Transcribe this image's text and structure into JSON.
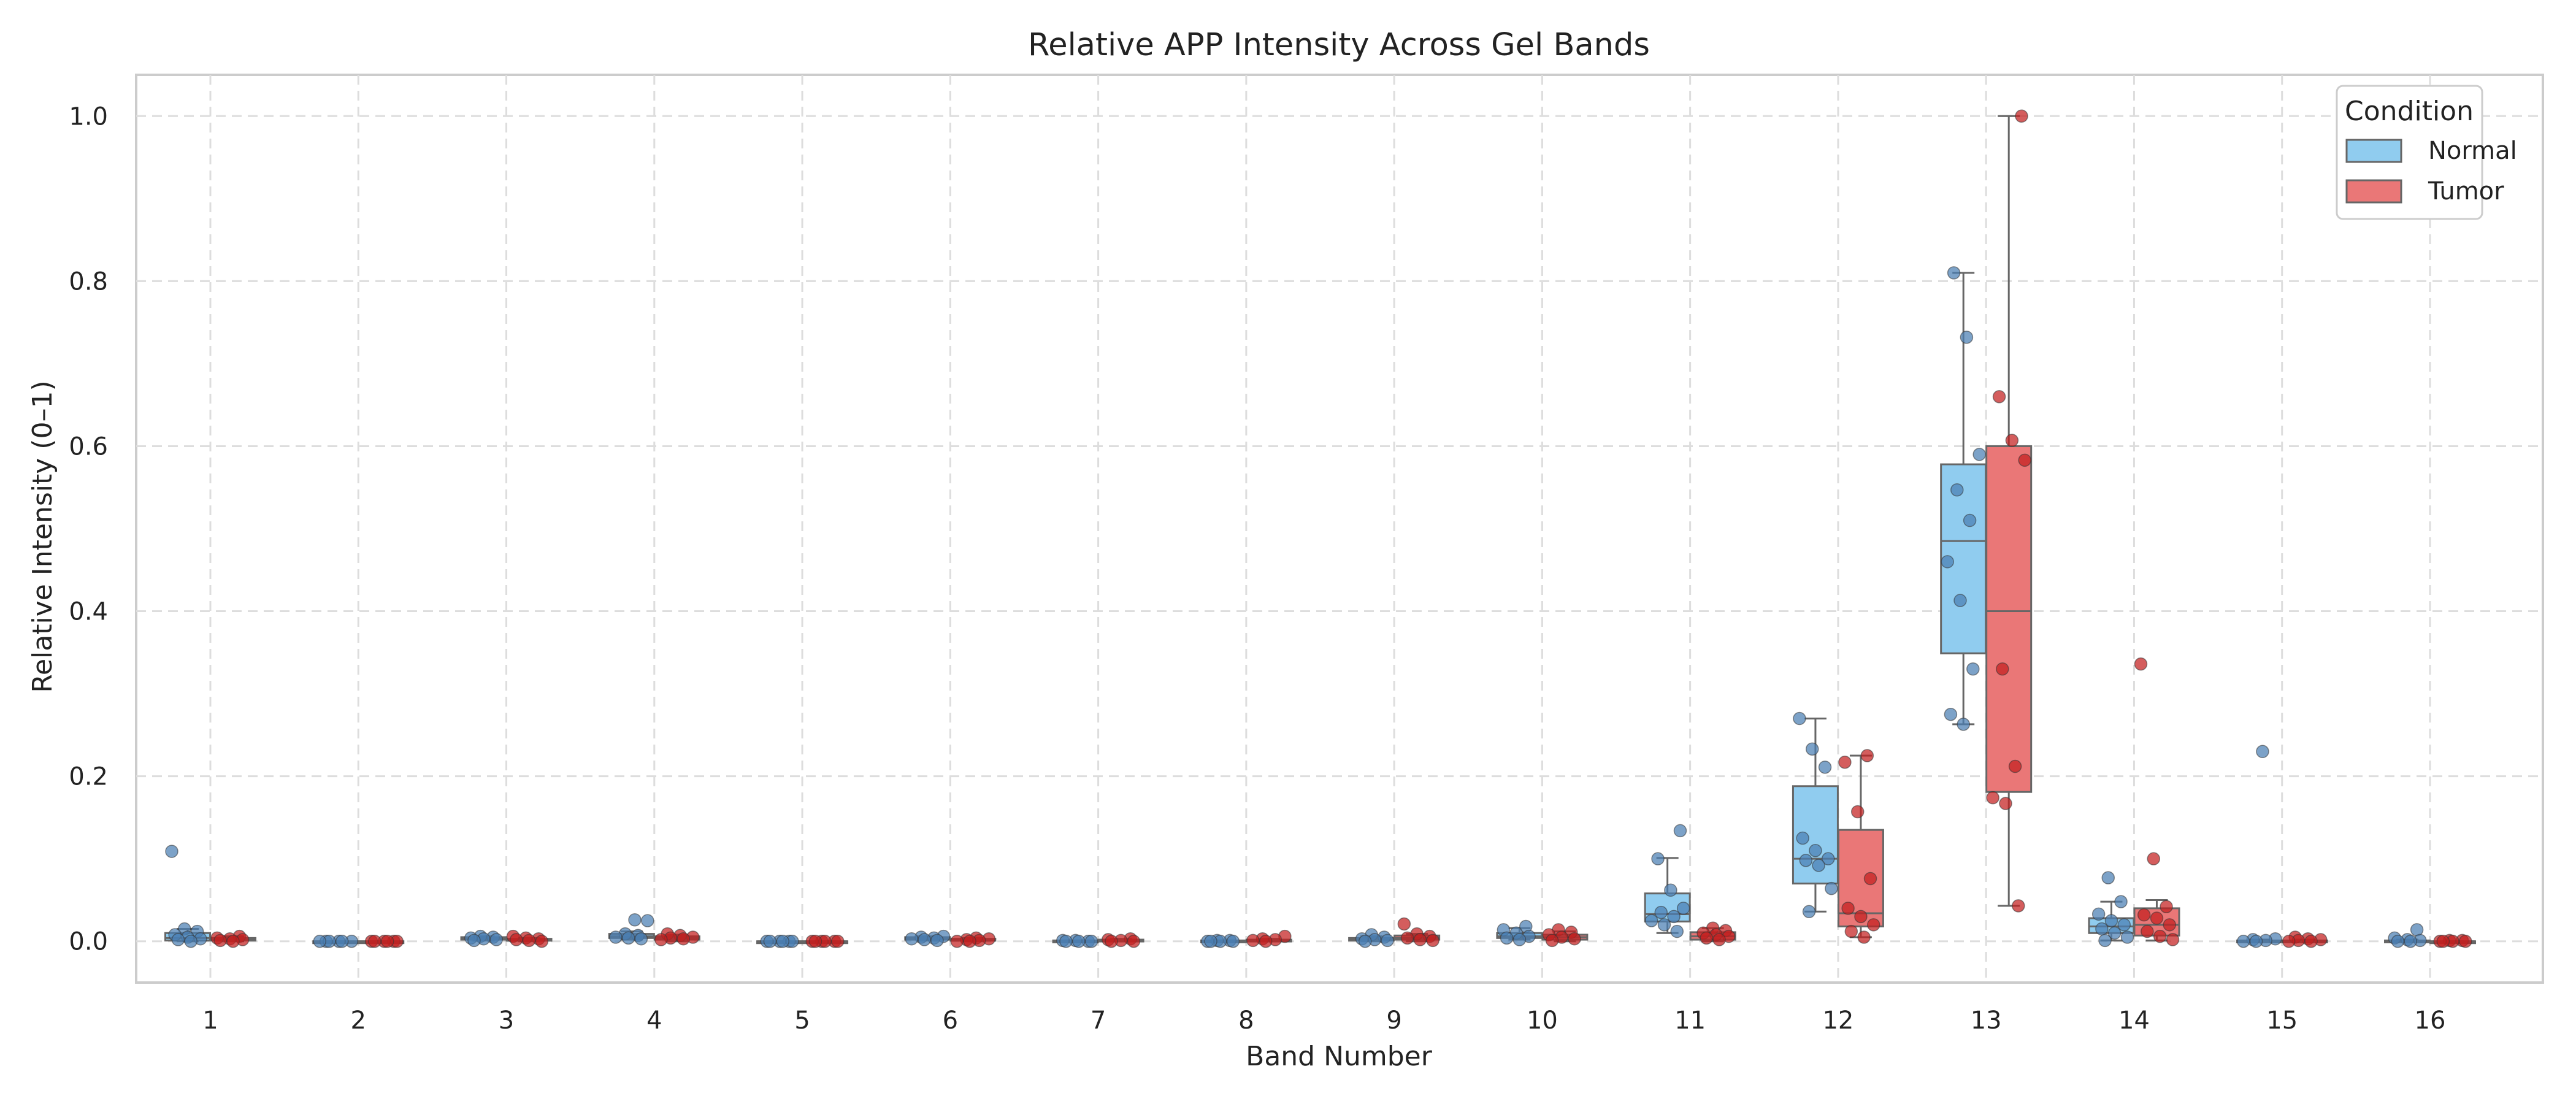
{
  "chart_data": {
    "type": "box",
    "title": "Relative APP Intensity Across Gel Bands",
    "xlabel": "Band Number",
    "ylabel": "Relative Intensity (0–1)",
    "ylim": [
      -0.05,
      1.05
    ],
    "yticks": [
      0.0,
      0.2,
      0.4,
      0.6,
      0.8,
      1.0
    ],
    "ytick_labels": [
      "0.0",
      "0.2",
      "0.4",
      "0.6",
      "0.8",
      "1.0"
    ],
    "grid": true,
    "legend": {
      "title": "Condition",
      "position": "top-right"
    },
    "categories": [
      "1",
      "2",
      "3",
      "4",
      "5",
      "6",
      "7",
      "8",
      "9",
      "10",
      "11",
      "12",
      "13",
      "14",
      "15",
      "16"
    ],
    "series": [
      {
        "name": "Normal",
        "color": "#90ccef",
        "point_color": "#4a7eb3",
        "boxes": [
          {
            "whislo": 0.0,
            "q1": 0.001,
            "med": 0.004,
            "q3": 0.01,
            "whishi": 0.015
          },
          {
            "whislo": 0.0,
            "q1": 0.0,
            "med": 0.0,
            "q3": 0.0,
            "whishi": 0.0
          },
          {
            "whislo": 0.001,
            "q1": 0.002,
            "med": 0.003,
            "q3": 0.005,
            "whishi": 0.006
          },
          {
            "whislo": 0.002,
            "q1": 0.004,
            "med": 0.006,
            "q3": 0.009,
            "whishi": 0.012
          },
          {
            "whislo": 0.0,
            "q1": 0.0,
            "med": 0.0,
            "q3": 0.0,
            "whishi": 0.0
          },
          {
            "whislo": 0.001,
            "q1": 0.002,
            "med": 0.003,
            "q3": 0.005,
            "whishi": 0.006
          },
          {
            "whislo": 0.0,
            "q1": 0.0,
            "med": 0.0,
            "q3": 0.001,
            "whishi": 0.001
          },
          {
            "whislo": 0.0,
            "q1": 0.0,
            "med": 0.0,
            "q3": 0.001,
            "whishi": 0.001
          },
          {
            "whislo": 0.0,
            "q1": 0.001,
            "med": 0.002,
            "q3": 0.004,
            "whishi": 0.006
          },
          {
            "whislo": 0.002,
            "q1": 0.004,
            "med": 0.006,
            "q3": 0.01,
            "whishi": 0.016
          },
          {
            "whislo": 0.01,
            "q1": 0.024,
            "med": 0.033,
            "q3": 0.058,
            "whishi": 0.101
          },
          {
            "whislo": 0.036,
            "q1": 0.07,
            "med": 0.1,
            "q3": 0.188,
            "whishi": 0.27
          },
          {
            "whislo": 0.263,
            "q1": 0.349,
            "med": 0.485,
            "q3": 0.578,
            "whishi": 0.81
          },
          {
            "whislo": 0.001,
            "q1": 0.01,
            "med": 0.018,
            "q3": 0.028,
            "whishi": 0.048
          },
          {
            "whislo": 0.0,
            "q1": 0.0,
            "med": 0.0,
            "q3": 0.001,
            "whishi": 0.002
          },
          {
            "whislo": 0.0,
            "q1": 0.0,
            "med": 0.0,
            "q3": 0.001,
            "whishi": 0.002
          }
        ],
        "points": [
          [
            0.109,
            0.015,
            0.012,
            0.008,
            0.005,
            0.003,
            0.002,
            0.0
          ],
          [
            0.0,
            0.0,
            0.0,
            0.0,
            0.0,
            0.0
          ],
          [
            0.006,
            0.005,
            0.004,
            0.003,
            0.002,
            0.001
          ],
          [
            0.026,
            0.025,
            0.009,
            0.007,
            0.005,
            0.004,
            0.003
          ],
          [
            0.0,
            0.0,
            0.0,
            0.0,
            0.0,
            0.0
          ],
          [
            0.006,
            0.005,
            0.004,
            0.003,
            0.002,
            0.001
          ],
          [
            0.001,
            0.001,
            0.0,
            0.0,
            0.0,
            0.0
          ],
          [
            0.001,
            0.001,
            0.0,
            0.0,
            0.0,
            0.0
          ],
          [
            0.008,
            0.005,
            0.003,
            0.002,
            0.001,
            0.0
          ],
          [
            0.018,
            0.014,
            0.01,
            0.006,
            0.004,
            0.002
          ],
          [
            0.134,
            0.1,
            0.062,
            0.04,
            0.035,
            0.03,
            0.025,
            0.02,
            0.012
          ],
          [
            0.27,
            0.233,
            0.211,
            0.125,
            0.11,
            0.1,
            0.098,
            0.092,
            0.064,
            0.036
          ],
          [
            0.81,
            0.732,
            0.59,
            0.547,
            0.51,
            0.46,
            0.413,
            0.33,
            0.275,
            0.263
          ],
          [
            0.077,
            0.048,
            0.033,
            0.025,
            0.02,
            0.015,
            0.01,
            0.005,
            0.001
          ],
          [
            0.23,
            0.003,
            0.002,
            0.001,
            0.0,
            0.0
          ],
          [
            0.014,
            0.004,
            0.002,
            0.001,
            0.0,
            0.0
          ]
        ]
      },
      {
        "name": "Tumor",
        "color": "#ea7777",
        "point_color": "#c41e1e",
        "boxes": [
          {
            "whislo": 0.0,
            "q1": 0.001,
            "med": 0.002,
            "q3": 0.004,
            "whishi": 0.006
          },
          {
            "whislo": 0.0,
            "q1": 0.0,
            "med": 0.0,
            "q3": 0.0,
            "whishi": 0.0
          },
          {
            "whislo": 0.0,
            "q1": 0.001,
            "med": 0.002,
            "q3": 0.003,
            "whishi": 0.004
          },
          {
            "whislo": 0.0,
            "q1": 0.002,
            "med": 0.004,
            "q3": 0.006,
            "whishi": 0.008
          },
          {
            "whislo": 0.0,
            "q1": 0.0,
            "med": 0.0,
            "q3": 0.0,
            "whishi": 0.0
          },
          {
            "whislo": 0.0,
            "q1": 0.001,
            "med": 0.002,
            "q3": 0.003,
            "whishi": 0.004
          },
          {
            "whislo": 0.0,
            "q1": 0.0,
            "med": 0.001,
            "q3": 0.002,
            "whishi": 0.003
          },
          {
            "whislo": 0.0,
            "q1": 0.0,
            "med": 0.001,
            "q3": 0.002,
            "whishi": 0.003
          },
          {
            "whislo": 0.0,
            "q1": 0.002,
            "med": 0.004,
            "q3": 0.007,
            "whishi": 0.009
          },
          {
            "whislo": 0.0,
            "q1": 0.002,
            "med": 0.005,
            "q3": 0.008,
            "whishi": 0.012
          },
          {
            "whislo": 0.0,
            "q1": 0.002,
            "med": 0.006,
            "q3": 0.011,
            "whishi": 0.016
          },
          {
            "whislo": 0.005,
            "q1": 0.018,
            "med": 0.034,
            "q3": 0.135,
            "whishi": 0.225
          },
          {
            "whislo": 0.043,
            "q1": 0.181,
            "med": 0.4,
            "q3": 0.6,
            "whishi": 1.0
          },
          {
            "whislo": 0.001,
            "q1": 0.007,
            "med": 0.02,
            "q3": 0.04,
            "whishi": 0.05
          },
          {
            "whislo": 0.0,
            "q1": 0.0,
            "med": 0.0,
            "q3": 0.001,
            "whishi": 0.002
          },
          {
            "whislo": 0.0,
            "q1": 0.0,
            "med": 0.0,
            "q3": 0.0,
            "whishi": 0.0
          }
        ],
        "points": [
          [
            0.006,
            0.004,
            0.003,
            0.002,
            0.001,
            0.0
          ],
          [
            0.0,
            0.0,
            0.0,
            0.0,
            0.0,
            0.0
          ],
          [
            0.006,
            0.004,
            0.003,
            0.002,
            0.001,
            0.0
          ],
          [
            0.009,
            0.007,
            0.005,
            0.004,
            0.003,
            0.002
          ],
          [
            0.0,
            0.0,
            0.0,
            0.0,
            0.0,
            0.0
          ],
          [
            0.004,
            0.003,
            0.002,
            0.001,
            0.0,
            0.0
          ],
          [
            0.003,
            0.002,
            0.001,
            0.0,
            0.0
          ],
          [
            0.006,
            0.003,
            0.002,
            0.001,
            0.0
          ],
          [
            0.021,
            0.009,
            0.006,
            0.004,
            0.002,
            0.001
          ],
          [
            0.014,
            0.011,
            0.008,
            0.005,
            0.003,
            0.001
          ],
          [
            0.016,
            0.013,
            0.01,
            0.008,
            0.006,
            0.004,
            0.002
          ],
          [
            0.225,
            0.217,
            0.157,
            0.076,
            0.04,
            0.03,
            0.02,
            0.012,
            0.005
          ],
          [
            1.0,
            0.66,
            0.607,
            0.583,
            0.33,
            0.212,
            0.174,
            0.167,
            0.043
          ],
          [
            0.336,
            0.1,
            0.042,
            0.032,
            0.028,
            0.02,
            0.012,
            0.006,
            0.002
          ],
          [
            0.005,
            0.003,
            0.002,
            0.001,
            0.0,
            0.0
          ],
          [
            0.001,
            0.001,
            0.0,
            0.0,
            0.0,
            0.0
          ]
        ]
      }
    ]
  }
}
